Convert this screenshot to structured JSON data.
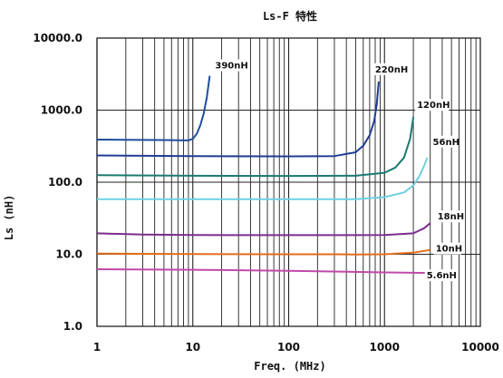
{
  "chart_data": {
    "type": "line",
    "title": "Ls-F 特性",
    "xlabel": "Freq.  (MHz)",
    "ylabel": "Ls  (nH)",
    "x_scale": "log",
    "y_scale": "log",
    "xlim": [
      1,
      10000
    ],
    "ylim": [
      1,
      10000
    ],
    "x_ticks": [
      1,
      10,
      100,
      1000,
      10000
    ],
    "x_tick_labels": [
      "1",
      "10",
      "100",
      "1000",
      "10000"
    ],
    "y_ticks": [
      1,
      10,
      100,
      1000,
      10000
    ],
    "y_tick_labels": [
      "1.0",
      "10.0",
      "100.0",
      "1000.0",
      "10000.0"
    ],
    "grid": true,
    "legend": "none",
    "series": [
      {
        "name": "390nH",
        "color": "#1f4e9c",
        "points": [
          [
            1,
            390
          ],
          [
            2,
            388
          ],
          [
            5,
            385
          ],
          [
            9,
            380
          ],
          [
            10,
            400
          ],
          [
            11,
            470
          ],
          [
            12,
            620
          ],
          [
            13,
            900
          ],
          [
            14,
            1500
          ],
          [
            15,
            3000
          ]
        ]
      },
      {
        "name": "220nH",
        "color": "#1f3c96",
        "points": [
          [
            1,
            235
          ],
          [
            10,
            230
          ],
          [
            100,
            228
          ],
          [
            300,
            230
          ],
          [
            500,
            260
          ],
          [
            600,
            320
          ],
          [
            700,
            450
          ],
          [
            780,
            700
          ],
          [
            830,
            1200
          ],
          [
            870,
            2500
          ]
        ]
      },
      {
        "name": "120nH",
        "color": "#1b7a73",
        "points": [
          [
            1,
            125
          ],
          [
            10,
            123
          ],
          [
            100,
            122
          ],
          [
            500,
            123
          ],
          [
            1000,
            135
          ],
          [
            1300,
            160
          ],
          [
            1600,
            220
          ],
          [
            1850,
            400
          ],
          [
            2000,
            800
          ]
        ]
      },
      {
        "name": "56nH",
        "color": "#6fd0df",
        "points": [
          [
            1,
            58
          ],
          [
            10,
            58
          ],
          [
            100,
            58
          ],
          [
            500,
            58
          ],
          [
            1000,
            62
          ],
          [
            1600,
            72
          ],
          [
            2000,
            90
          ],
          [
            2300,
            120
          ],
          [
            2600,
            170
          ],
          [
            2800,
            220
          ]
        ]
      },
      {
        "name": "18nH",
        "color": "#7c2d8e",
        "points": [
          [
            1,
            19.5
          ],
          [
            3,
            18.8
          ],
          [
            10,
            18.5
          ],
          [
            100,
            18.4
          ],
          [
            1000,
            18.5
          ],
          [
            2000,
            19.5
          ],
          [
            2600,
            23
          ],
          [
            3000,
            27
          ]
        ]
      },
      {
        "name": "10nH",
        "color": "#e36c1a",
        "points": [
          [
            1,
            10.2
          ],
          [
            10,
            10.1
          ],
          [
            100,
            10
          ],
          [
            300,
            10
          ],
          [
            500,
            9.9
          ],
          [
            1000,
            10
          ],
          [
            2000,
            10.5
          ],
          [
            3000,
            11.5
          ]
        ]
      },
      {
        "name": "5.6nH",
        "color": "#c04aa8",
        "points": [
          [
            1,
            6.2
          ],
          [
            10,
            6.1
          ],
          [
            100,
            5.9
          ],
          [
            1000,
            5.6
          ],
          [
            3000,
            5.5
          ]
        ]
      }
    ]
  }
}
